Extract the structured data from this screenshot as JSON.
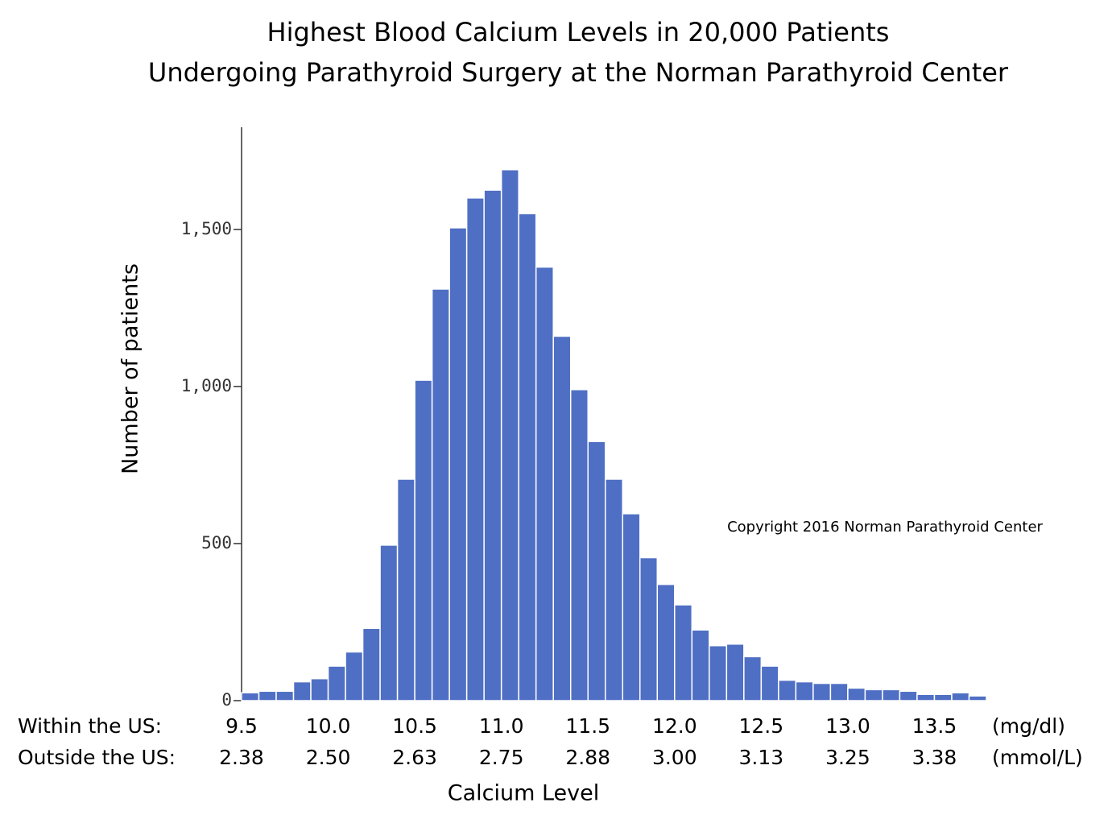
{
  "chart_data": {
    "type": "histogram",
    "title": [
      "Highest Blood Calcium Levels in 20,000 Patients",
      "Undergoing Parathyroid Surgery at the Norman Parathyroid Center"
    ],
    "xlabel": "Calcium Level",
    "ylabel": "Number of patients",
    "annotation": "Copyright 2016 Norman Parathyroid Center",
    "x_row_label": "Within the US:",
    "x2_row_label": "Outside the US:",
    "x_unit": "(mg/dl)",
    "x2_unit": "(mmol/L)",
    "color": "#4f6fc4",
    "bins": [
      9.5,
      9.6,
      9.7,
      9.8,
      9.9,
      10.0,
      10.1,
      10.2,
      10.3,
      10.4,
      10.5,
      10.6,
      10.7,
      10.8,
      10.9,
      11.0,
      11.1,
      11.2,
      11.3,
      11.4,
      11.5,
      11.6,
      11.7,
      11.8,
      11.9,
      12.0,
      12.1,
      12.2,
      12.3,
      12.4,
      12.5,
      12.6,
      12.7,
      12.8,
      12.9,
      13.0,
      13.1,
      13.2,
      13.3,
      13.4,
      13.5,
      13.6,
      13.7,
      13.8
    ],
    "values": [
      25,
      30,
      30,
      60,
      70,
      110,
      155,
      230,
      495,
      705,
      1020,
      1310,
      1505,
      1600,
      1625,
      1690,
      1550,
      1380,
      1160,
      990,
      825,
      705,
      595,
      455,
      370,
      305,
      225,
      175,
      180,
      140,
      110,
      65,
      60,
      55,
      55,
      40,
      35,
      35,
      30,
      20,
      20,
      25,
      15
    ],
    "xlim": [
      9.5,
      13.8
    ],
    "xticks": [
      9.5,
      {
        "value": 10,
        "label": "10.0"
      },
      10.5,
      {
        "value": 11,
        "label": "11.0"
      },
      11.5,
      {
        "value": 12,
        "label": "12.0"
      },
      12.5,
      {
        "value": 13,
        "label": "13.0"
      },
      13.5
    ],
    "x2ticks": [
      {
        "value": 9.5,
        "label": "2.38"
      },
      {
        "value": 10,
        "label": "2.50"
      },
      {
        "value": 10.5,
        "label": "2.63"
      },
      {
        "value": 11,
        "label": "2.75"
      },
      {
        "value": 11.5,
        "label": "2.88"
      },
      {
        "value": 12,
        "label": "3.00"
      },
      {
        "value": 12.5,
        "label": "3.13"
      },
      {
        "value": 13,
        "label": "3.25"
      },
      {
        "value": 13.5,
        "label": "3.38"
      }
    ],
    "ylim": [
      0,
      1820
    ],
    "yticks": [
      0,
      500,
      {
        "value": 1000,
        "label": "1,000"
      },
      {
        "value": 1500,
        "label": "1,500"
      }
    ],
    "grid": false
  }
}
